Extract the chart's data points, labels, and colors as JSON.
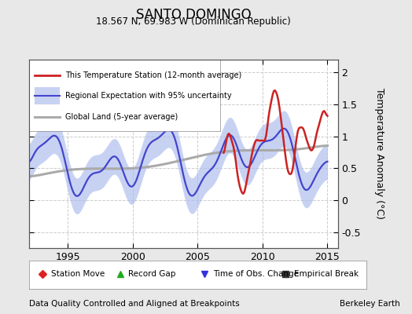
{
  "title": "SANTO DOMINGO",
  "subtitle": "18.567 N, 69.983 W (Dominican Republic)",
  "ylabel": "Temperature Anomaly (°C)",
  "xlabel_left": "Data Quality Controlled and Aligned at Breakpoints",
  "xlabel_right": "Berkeley Earth",
  "ylim": [
    -0.75,
    2.2
  ],
  "xlim": [
    1992.0,
    2015.8
  ],
  "yticks": [
    -0.5,
    0,
    0.5,
    1,
    1.5,
    2
  ],
  "xticks": [
    1995,
    2000,
    2005,
    2010,
    2015
  ],
  "bg_color": "#e8e8e8",
  "plot_bg_color": "#ffffff",
  "grid_color": "#cccccc",
  "regional_color": "#4444cc",
  "regional_fill_color": "#aabbee",
  "station_color": "#cc2222",
  "global_color": "#aaaaaa",
  "marker_items": [
    {
      "label": "Station Move",
      "color": "#dd2222",
      "marker": "D"
    },
    {
      "label": "Record Gap",
      "color": "#22aa22",
      "marker": "^"
    },
    {
      "label": "Time of Obs. Change",
      "color": "#3333dd",
      "marker": "v"
    },
    {
      "label": "Empirical Break",
      "color": "#333333",
      "marker": "s"
    }
  ]
}
